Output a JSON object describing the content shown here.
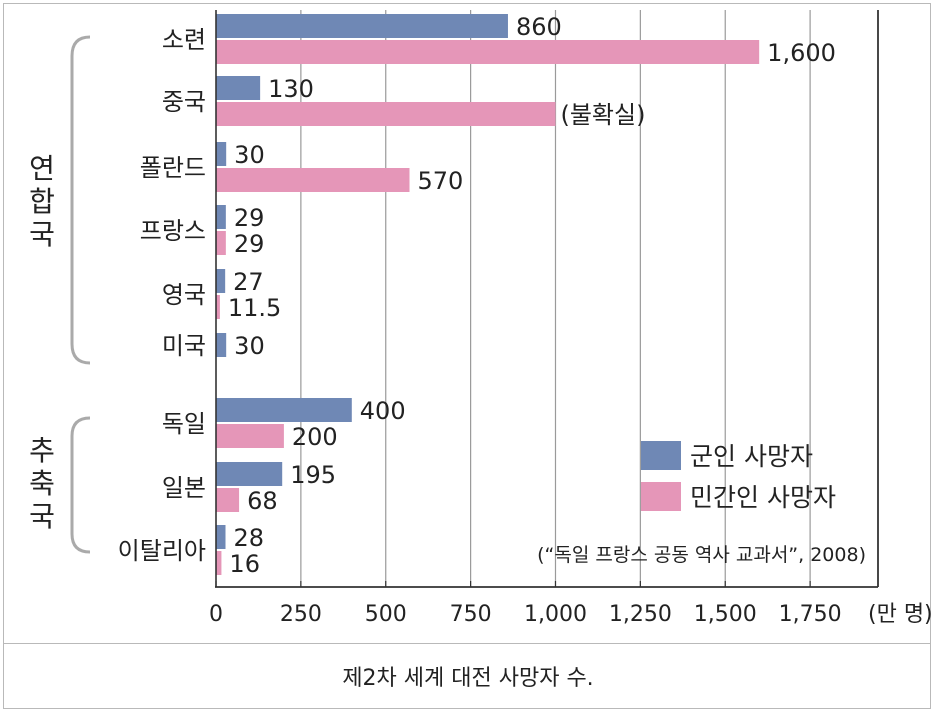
{
  "caption": "제2차 세계 대전 사망자 수.",
  "colors": {
    "military": "#6f88b5",
    "civilian": "#e596b8",
    "axis": "#333333",
    "grid": "#9a9a9a",
    "bracket": "#aaaaaa"
  },
  "chart_data": {
    "type": "bar",
    "orientation": "horizontal",
    "unit": "(만 명)",
    "xlim": [
      0,
      1950
    ],
    "x_ticks": [
      0,
      250,
      500,
      750,
      1000,
      1250,
      1500,
      1750
    ],
    "x_tick_labels": [
      "0",
      "250",
      "500",
      "750",
      "1,000",
      "1,250",
      "1,500",
      "1,750"
    ],
    "categories": [
      "소련",
      "중국",
      "폴란드",
      "프랑스",
      "영국",
      "미국",
      "독일",
      "일본",
      "이탈리아"
    ],
    "groups": [
      {
        "name": "연합국",
        "categories": [
          "소련",
          "중국",
          "폴란드",
          "프랑스",
          "영국",
          "미국"
        ]
      },
      {
        "name": "추축국",
        "categories": [
          "독일",
          "일본",
          "이탈리아"
        ]
      }
    ],
    "series": [
      {
        "name": "군인 사망자",
        "values": [
          860,
          130,
          30,
          29,
          27,
          30,
          400,
          195,
          28
        ],
        "labels": [
          "860",
          "130",
          "30",
          "29",
          "27",
          "30",
          "400",
          "195",
          "28"
        ]
      },
      {
        "name": "민간인 사망자",
        "values": [
          1600,
          1000,
          570,
          29,
          11.5,
          null,
          200,
          68,
          16
        ],
        "labels": [
          "1,600",
          "(불확실)",
          "570",
          "29",
          "11.5",
          "",
          "200",
          "68",
          "16"
        ]
      }
    ],
    "legend_position": "bottom-right",
    "source": "(“독일 프랑스 공동 역사 교과서”, 2008)",
    "grid": "vertical"
  }
}
